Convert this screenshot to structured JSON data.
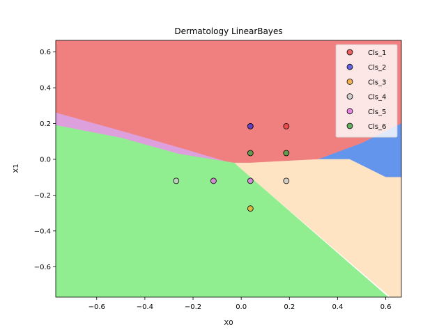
{
  "chart_data": {
    "type": "scatter",
    "title": "Dermatology LinearBayes",
    "xlabel": "X0",
    "ylabel": "X1",
    "xlim": [
      -0.77,
      0.665
    ],
    "ylim": [
      -0.77,
      0.665
    ],
    "x_ticks": [
      -0.6,
      -0.4,
      -0.2,
      0.0,
      0.2,
      0.4,
      0.6
    ],
    "y_ticks": [
      -0.6,
      -0.4,
      -0.2,
      0.0,
      0.2,
      0.4,
      0.6
    ],
    "x_tick_labels": [
      "−0.6",
      "−0.4",
      "−0.2",
      "0.0",
      "0.2",
      "0.4",
      "0.6"
    ],
    "y_tick_labels": [
      "−0.6",
      "−0.4",
      "−0.2",
      "0.0",
      "0.2",
      "0.4",
      "0.6"
    ],
    "grid": false,
    "legend_position": "top-right",
    "regions": [
      {
        "class": "Cls_1",
        "color": "#f08080",
        "polygon": [
          [
            -0.77,
            0.665
          ],
          [
            0.665,
            0.665
          ],
          [
            0.665,
            0.2
          ],
          [
            0.5,
            0.09
          ],
          [
            0.32,
            0.0
          ],
          [
            0.04,
            -0.02
          ],
          [
            -0.02,
            -0.03
          ],
          [
            -0.22,
            0.05
          ],
          [
            -0.45,
            0.14
          ],
          [
            -0.77,
            0.26
          ]
        ]
      },
      {
        "class": "Cls_2",
        "color": "#6495ed",
        "polygon": [
          [
            0.665,
            0.2
          ],
          [
            0.665,
            -0.1
          ],
          [
            0.6,
            -0.1
          ],
          [
            0.45,
            0.0
          ],
          [
            0.32,
            0.0
          ],
          [
            0.5,
            0.09
          ]
        ]
      },
      {
        "class": "Cls_4",
        "color": "#ffe4c4",
        "polygon": [
          [
            -0.03,
            -0.02
          ],
          [
            0.04,
            -0.02
          ],
          [
            0.32,
            0.0
          ],
          [
            0.45,
            0.0
          ],
          [
            0.6,
            -0.1
          ],
          [
            0.665,
            -0.1
          ],
          [
            0.665,
            -0.77
          ],
          [
            0.62,
            -0.77
          ]
        ]
      },
      {
        "class": "Cls_5",
        "color": "#dda0dd",
        "polygon": [
          [
            -0.77,
            0.26
          ],
          [
            -0.45,
            0.14
          ],
          [
            -0.22,
            0.05
          ],
          [
            -0.02,
            -0.03
          ],
          [
            -0.03,
            -0.02
          ],
          [
            -0.26,
            0.03
          ],
          [
            -0.5,
            0.12
          ],
          [
            -0.77,
            0.19
          ]
        ]
      },
      {
        "class": "Cls_6",
        "color": "#90ee90",
        "polygon": [
          [
            -0.77,
            0.19
          ],
          [
            -0.5,
            0.12
          ],
          [
            -0.26,
            0.03
          ],
          [
            -0.03,
            -0.02
          ],
          [
            0.61,
            -0.77
          ],
          [
            -0.77,
            -0.77
          ]
        ]
      }
    ],
    "series": [
      {
        "name": "Cls_1",
        "color": "#e84040",
        "points": [
          [
            0.038,
            0.185
          ],
          [
            0.187,
            0.185
          ]
        ]
      },
      {
        "name": "Cls_2",
        "color": "#4040e0",
        "points": [
          [
            0.038,
            0.185
          ]
        ]
      },
      {
        "name": "Cls_3",
        "color": "#f0a830",
        "points": [
          [
            0.038,
            -0.275
          ]
        ]
      },
      {
        "name": "Cls_4",
        "color": "#c8c8c8",
        "points": [
          [
            -0.27,
            -0.12
          ],
          [
            0.187,
            -0.12
          ]
        ]
      },
      {
        "name": "Cls_5",
        "color": "#e070e0",
        "points": [
          [
            -0.115,
            -0.12
          ],
          [
            0.038,
            -0.12
          ]
        ]
      },
      {
        "name": "Cls_6",
        "color": "#40a040",
        "points": [
          [
            0.038,
            0.035
          ],
          [
            0.187,
            0.035
          ]
        ]
      }
    ]
  }
}
